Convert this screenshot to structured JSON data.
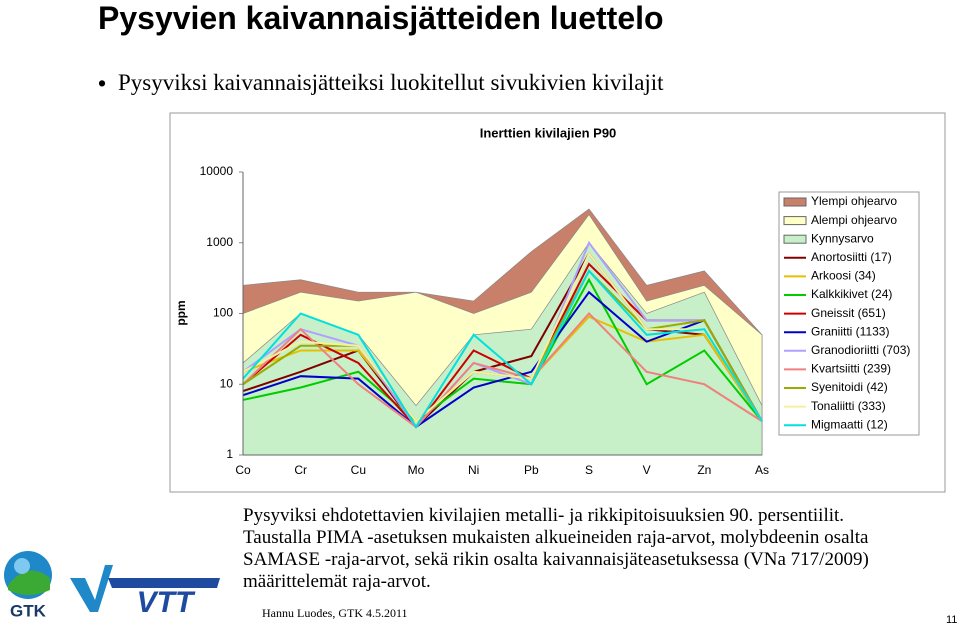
{
  "title": "Pysyvien kaivannaisjätteiden luettelo",
  "bullet": "Pysyviksi kaivannaisjätteiksi luokitellut sivukivien kivilajit",
  "chart_data": {
    "type": "line",
    "title": "Inerttien kivilajien P90",
    "y_label": "ppm",
    "log_scale": true,
    "categories": [
      "Co",
      "Cr",
      "Cu",
      "Mo",
      "Ni",
      "Pb",
      "S",
      "V",
      "Zn",
      "As"
    ],
    "ylim": [
      1,
      10000
    ],
    "yticks": [
      1,
      10,
      100,
      1000,
      10000
    ],
    "series": [
      {
        "name": "Ylempi ohjearvo",
        "style": "area",
        "color": "#c8806a",
        "values": [
          250,
          300,
          200,
          200,
          150,
          750,
          3000,
          250,
          400,
          50
        ]
      },
      {
        "name": "Alempi ohjearvo",
        "style": "area",
        "color": "#ffffc8",
        "values": [
          100,
          200,
          150,
          200,
          100,
          200,
          2500,
          150,
          250,
          50
        ]
      },
      {
        "name": "Kynnysarvo",
        "style": "area",
        "color": "#c8f0c8",
        "values": [
          20,
          100,
          50,
          5,
          50,
          60,
          1000,
          100,
          200,
          5
        ]
      },
      {
        "name": "Anortosiitti (17)",
        "style": "line",
        "color": "#800000",
        "values": [
          8,
          15,
          30,
          2.5,
          15,
          25,
          700,
          60,
          50,
          3
        ]
      },
      {
        "name": "Arkoosi (34)",
        "style": "line",
        "color": "#e6c000",
        "values": [
          15,
          30,
          30,
          3,
          15,
          12,
          90,
          40,
          50,
          3
        ]
      },
      {
        "name": "Kalkkikivet (24)",
        "style": "line",
        "color": "#00cc00",
        "values": [
          6,
          9,
          15,
          3,
          12,
          10,
          300,
          10,
          30,
          3
        ]
      },
      {
        "name": "Gneissit (651)",
        "style": "line",
        "color": "#cc0000",
        "values": [
          10,
          50,
          20,
          2.5,
          30,
          12,
          500,
          80,
          80,
          3
        ]
      },
      {
        "name": "Graniitti (1133)",
        "style": "line",
        "color": "#0000cc",
        "values": [
          7,
          13,
          12,
          2.5,
          9,
          15,
          200,
          40,
          80,
          3
        ]
      },
      {
        "name": "Granodioriitti (703)",
        "style": "line",
        "color": "#b0a0ff",
        "values": [
          15,
          60,
          35,
          2.5,
          20,
          10,
          1000,
          80,
          80,
          3
        ]
      },
      {
        "name": "Kvartsiitti (239)",
        "style": "line",
        "color": "#f08080",
        "values": [
          10,
          60,
          10,
          2.5,
          20,
          12,
          100,
          15,
          10,
          3
        ]
      },
      {
        "name": "Syenitoidi (42)",
        "style": "line",
        "color": "#99aa00",
        "values": [
          10,
          35,
          35,
          3,
          15,
          12,
          400,
          60,
          80,
          3
        ]
      },
      {
        "name": "Tonaliitti (333)",
        "style": "line",
        "color": "#f5f0a0",
        "values": [
          15,
          40,
          35,
          3,
          15,
          12,
          700,
          60,
          60,
          3
        ]
      },
      {
        "name": "Migmaatti (12)",
        "style": "line",
        "color": "#00e0e0",
        "values": [
          12,
          100,
          50,
          2.5,
          50,
          10,
          400,
          50,
          60,
          3
        ]
      }
    ]
  },
  "notes": [
    "Pysyviksi ehdotettavien kivilajien metalli- ja rikkipitoisuuksien 90. persentiilit.",
    "Taustalla PIMA -asetuksen mukaisten alkueineiden raja-arvot, molybdeenin osalta SAMASE -raja-arvot, sekä rikin osalta kaivannaisjäteasetuksessa (VNa 717/2009) määrittelemät raja-arvot."
  ],
  "footer": "Hannu Luodes, GTK 4.5.2011",
  "page_number": "11",
  "logos": {
    "gtk": "GTK",
    "vtt": "VTT"
  }
}
